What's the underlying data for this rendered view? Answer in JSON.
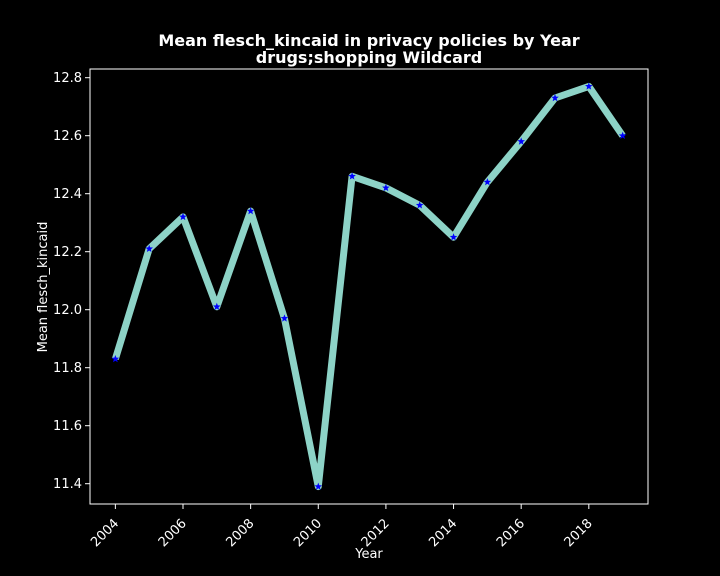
{
  "chart_data": {
    "type": "line",
    "title": "Mean flesch_kincaid in privacy policies by Year",
    "subtitle": "drugs;shopping Wildcard",
    "xlabel": "Year",
    "ylabel": "Mean flesch_kincaid",
    "x": [
      2004,
      2005,
      2006,
      2007,
      2008,
      2009,
      2010,
      2011,
      2012,
      2013,
      2014,
      2015,
      2016,
      2017,
      2018,
      2019
    ],
    "series": [
      {
        "values": [
          11.83,
          12.21,
          12.32,
          12.01,
          12.34,
          11.97,
          11.39,
          12.46,
          12.42,
          12.36,
          12.25,
          12.44,
          12.58,
          12.73,
          12.77,
          12.6
        ]
      }
    ],
    "xticks": [
      "2004",
      "2006",
      "2008",
      "2010",
      "2012",
      "2014",
      "2016",
      "2018"
    ],
    "yticks": [
      "11.4",
      "11.6",
      "11.8",
      "12.0",
      "12.2",
      "12.4",
      "12.6",
      "12.8"
    ],
    "xlim": [
      2003.25,
      2019.75
    ],
    "ylim": [
      11.33,
      12.83
    ],
    "grid": false,
    "background_color": "#000000",
    "line_color": "#8dd3c7",
    "marker_color": "#0000ff",
    "marker": "star"
  }
}
